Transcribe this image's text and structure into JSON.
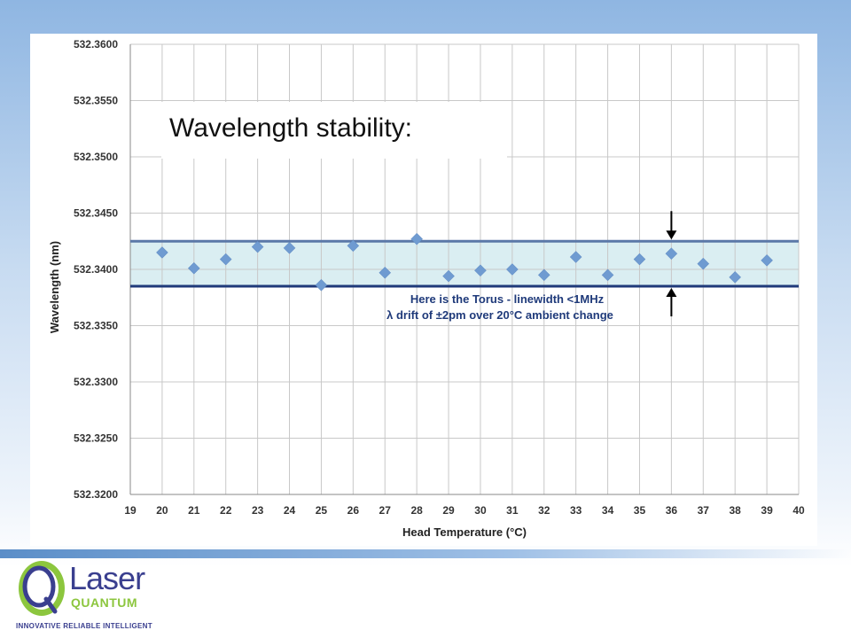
{
  "chart_data": {
    "type": "scatter",
    "title": "Wavelength stability:",
    "xlabel": "Head Temperature (°C)",
    "ylabel": "Wavelength (nm)",
    "xlim": [
      19,
      40
    ],
    "ylim": [
      532.32,
      532.36
    ],
    "x_ticks": [
      "19",
      "20",
      "21",
      "22",
      "23",
      "24",
      "25",
      "26",
      "27",
      "28",
      "29",
      "30",
      "31",
      "32",
      "33",
      "34",
      "35",
      "36",
      "37",
      "38",
      "39",
      "40"
    ],
    "y_ticks": [
      "532.3200",
      "532.3250",
      "532.3300",
      "532.3350",
      "532.3400",
      "532.3450",
      "532.3500",
      "532.3550",
      "532.3600"
    ],
    "grid": true,
    "series": [
      {
        "marker": "diamond",
        "color": "#6f9bd1",
        "x": [
          20,
          21,
          22,
          23,
          24,
          25,
          26,
          27,
          28,
          29,
          30,
          31,
          32,
          33,
          34,
          35,
          36,
          37,
          38,
          39
        ],
        "y": [
          532.3415,
          532.3401,
          532.3409,
          532.342,
          532.3419,
          532.3386,
          532.3421,
          532.3397,
          532.3427,
          532.3394,
          532.3399,
          532.34,
          532.3395,
          532.3411,
          532.3395,
          532.3409,
          532.3414,
          532.3405,
          532.3393,
          532.3408
        ]
      }
    ],
    "band": {
      "low": 532.3385,
      "high": 532.3425,
      "fill_color": "#daeef2"
    },
    "reference_lines": [
      {
        "y": 532.3425,
        "color": "#5a78a8"
      },
      {
        "y": 532.3385,
        "color": "#1f3a7a"
      }
    ],
    "annotations": [
      "Here is the Torus - linewidth <1MHz",
      "λ drift of ±2pm over 20°C ambient change"
    ]
  },
  "logo": {
    "word1": "Laser",
    "word2": "QUANTUM",
    "tagline": "INNOVATIVE RELIABLE INTELLIGENT",
    "colors": {
      "green": "#8cc63e",
      "navy": "#3a3f8f"
    }
  }
}
